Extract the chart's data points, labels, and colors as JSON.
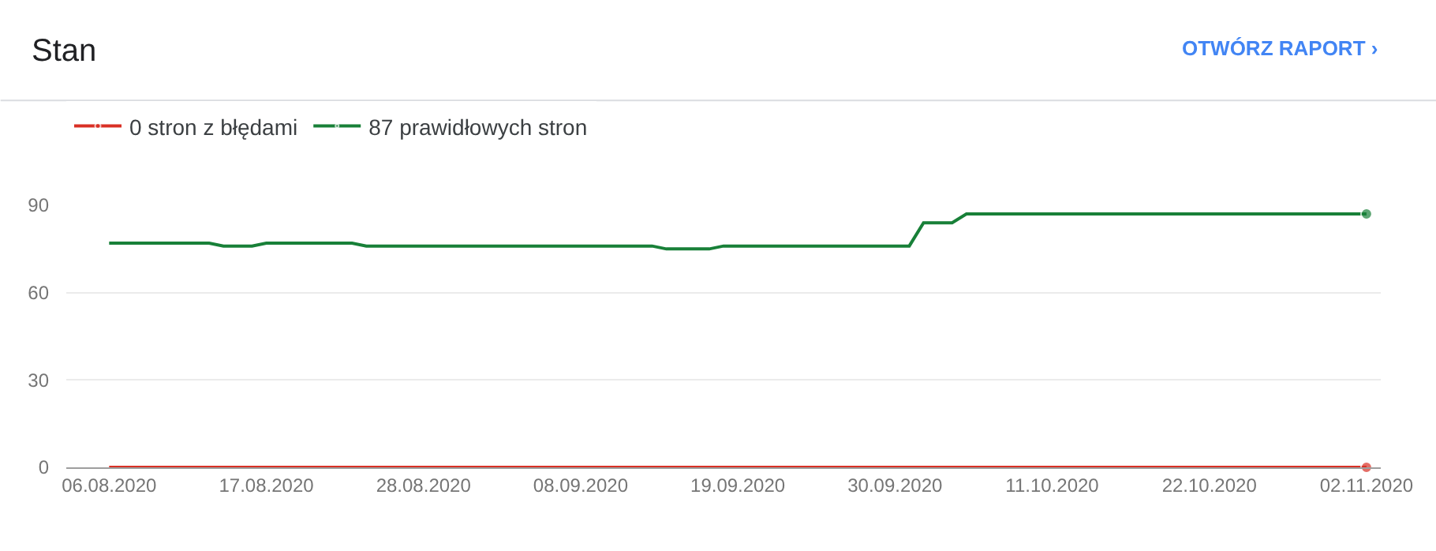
{
  "chart_data": {
    "type": "line",
    "title": "Stan",
    "annotations": [
      "OTWÓRZ RAPORT ›"
    ],
    "series": [
      {
        "name": "0 stron z błędami",
        "color": "#d93025",
        "x": [
          "2020-08-06",
          "2020-11-02"
        ],
        "values": [
          0,
          0
        ]
      },
      {
        "name": "87 prawidłowych stron",
        "color": "#188038",
        "x": [
          "2020-08-06",
          "2020-08-13",
          "2020-08-14",
          "2020-08-16",
          "2020-08-17",
          "2020-08-23",
          "2020-08-24",
          "2020-09-13",
          "2020-09-14",
          "2020-09-17",
          "2020-09-18",
          "2020-10-01",
          "2020-10-02",
          "2020-10-04",
          "2020-10-05",
          "2020-11-02"
        ],
        "values": [
          77,
          77,
          76,
          76,
          77,
          77,
          76,
          76,
          75,
          75,
          76,
          76,
          84,
          84,
          87,
          87
        ]
      }
    ],
    "xlim": [
      "2020-08-03",
      "2020-11-03"
    ],
    "xticks": [
      {
        "value": "2020-08-06",
        "label": "06.08.2020"
      },
      {
        "value": "2020-08-17",
        "label": "17.08.2020"
      },
      {
        "value": "2020-08-28",
        "label": "28.08.2020"
      },
      {
        "value": "2020-09-08",
        "label": "08.09.2020"
      },
      {
        "value": "2020-09-19",
        "label": "19.09.2020"
      },
      {
        "value": "2020-09-30",
        "label": "30.09.2020"
      },
      {
        "value": "2020-10-11",
        "label": "11.10.2020"
      },
      {
        "value": "2020-10-22",
        "label": "22.10.2020"
      },
      {
        "value": "2020-11-02",
        "label": "02.11.2020"
      }
    ],
    "ylim": [
      0,
      90
    ],
    "yticks": [
      0,
      30,
      60,
      90
    ],
    "grid": "y",
    "legend": "top left"
  }
}
